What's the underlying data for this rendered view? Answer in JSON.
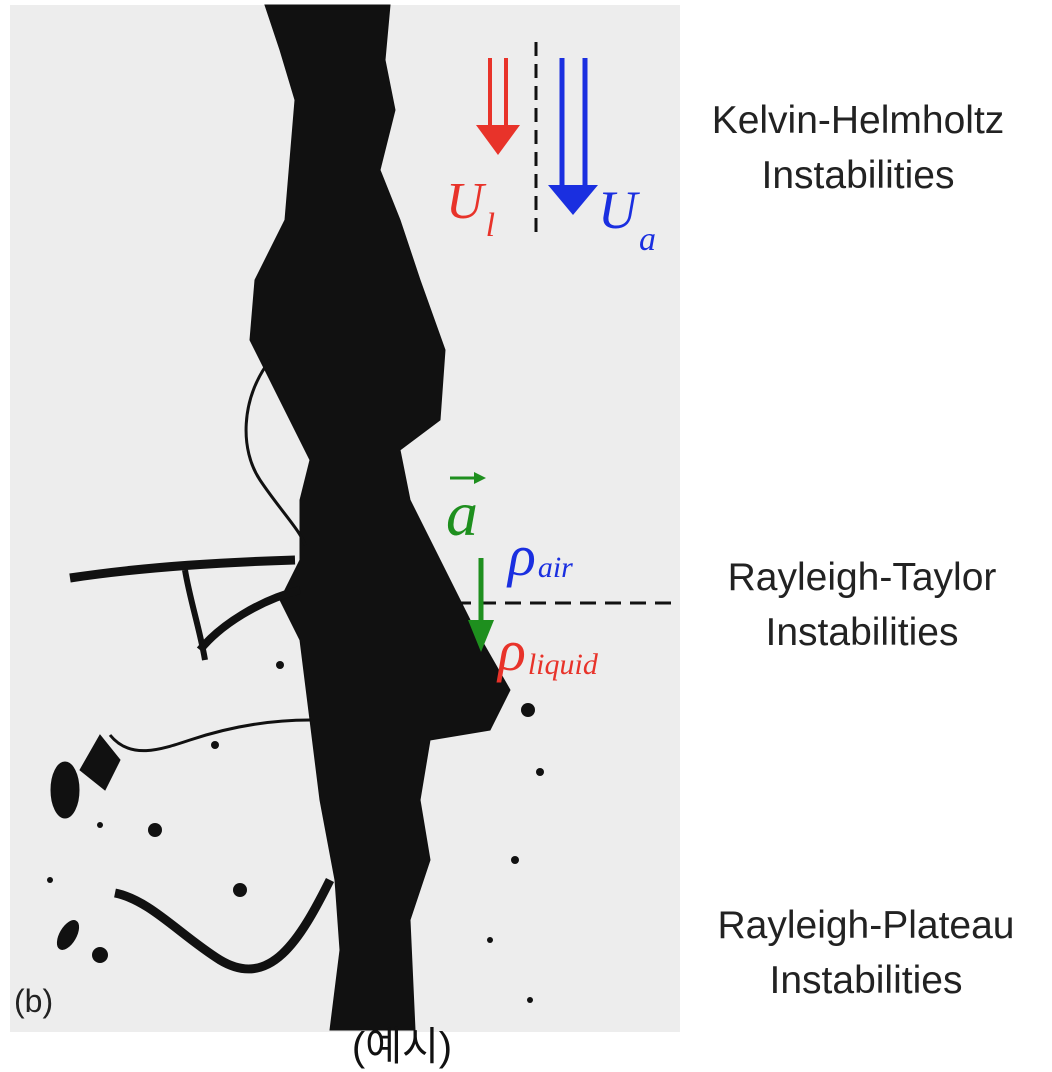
{
  "panel_label": "(b)",
  "caption": "(예시)",
  "labels": [
    {
      "title": "Kelvin-Helmholtz",
      "subtitle": "Instabilities"
    },
    {
      "title": "Rayleigh-Taylor",
      "subtitle": "Instabilities"
    },
    {
      "title": "Rayleigh-Plateau",
      "subtitle": "Instabilities"
    }
  ],
  "symbols": {
    "liquid_velocity": {
      "symbol": "U",
      "subscript": "l"
    },
    "air_velocity": {
      "symbol": "U",
      "subscript": "a"
    },
    "acceleration": "a",
    "air_density": {
      "symbol": "ρ",
      "subscript": "air"
    },
    "liquid_density": {
      "symbol": "ρ",
      "subscript": "liquid"
    }
  }
}
